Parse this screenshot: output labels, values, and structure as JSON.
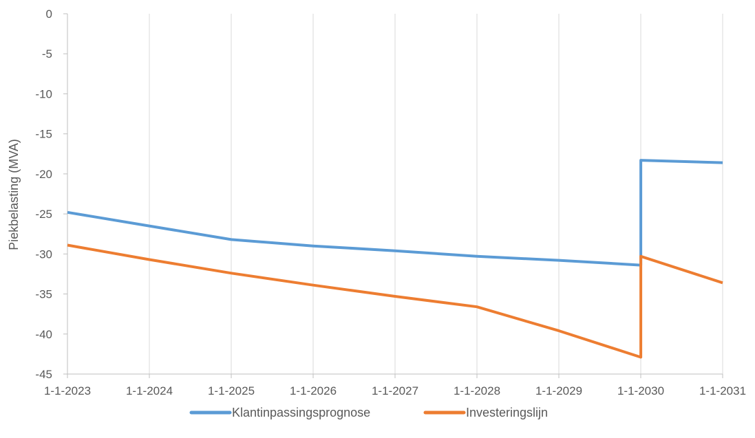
{
  "chart_data": {
    "type": "line",
    "title": "",
    "xlabel": "",
    "ylabel": "Piekbelasting (MVA)",
    "x_ticks": [
      "1-1-2023",
      "1-1-2024",
      "1-1-2025",
      "1-1-2026",
      "1-1-2027",
      "1-1-2028",
      "1-1-2029",
      "1-1-2030",
      "1-1-2031"
    ],
    "y_ticks": [
      "0",
      "-5",
      "-10",
      "-15",
      "-20",
      "-25",
      "-30",
      "-35",
      "-40",
      "-45"
    ],
    "xlim": [
      "2023-01-01",
      "2031-01-01"
    ],
    "ylim": [
      -45,
      0
    ],
    "grid": "vertical gridlines only",
    "legend_position": "bottom",
    "series": [
      {
        "name": "Klantinpassingsprognose",
        "color": "#5B9BD5",
        "points": [
          {
            "x": "2023-01-01",
            "y": -24.8
          },
          {
            "x": "2024-01-01",
            "y": -26.5
          },
          {
            "x": "2025-01-01",
            "y": -28.2
          },
          {
            "x": "2026-01-01",
            "y": -29.0
          },
          {
            "x": "2027-01-01",
            "y": -29.6
          },
          {
            "x": "2028-01-01",
            "y": -30.3
          },
          {
            "x": "2029-01-01",
            "y": -30.8
          },
          {
            "x": "2030-01-01",
            "y": -31.4
          },
          {
            "x": "2030-01-01",
            "y": -18.3
          },
          {
            "x": "2031-01-01",
            "y": -18.6
          }
        ]
      },
      {
        "name": "Investeringslijn",
        "color": "#ED7D31",
        "points": [
          {
            "x": "2023-01-01",
            "y": -28.9
          },
          {
            "x": "2024-01-01",
            "y": -30.7
          },
          {
            "x": "2025-01-01",
            "y": -32.4
          },
          {
            "x": "2026-01-01",
            "y": -33.9
          },
          {
            "x": "2027-01-01",
            "y": -35.3
          },
          {
            "x": "2028-01-01",
            "y": -36.6
          },
          {
            "x": "2029-01-01",
            "y": -39.6
          },
          {
            "x": "2030-01-01",
            "y": -42.9
          },
          {
            "x": "2030-01-01",
            "y": -30.3
          },
          {
            "x": "2031-01-01",
            "y": -33.6
          }
        ]
      }
    ]
  }
}
